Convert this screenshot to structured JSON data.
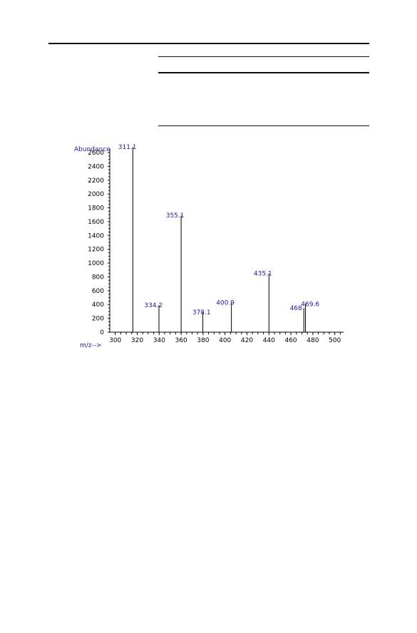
{
  "page": {
    "rules": [
      {
        "name": "top-rule"
      },
      {
        "name": "table-rule-1"
      },
      {
        "name": "table-rule-2"
      },
      {
        "name": "table-rule-3"
      }
    ]
  },
  "chart_data": {
    "type": "bar",
    "title": "",
    "ylabel": "Abundance",
    "xlabel": "m/z-->",
    "xlim": [
      295,
      508
    ],
    "ylim": [
      0,
      2800
    ],
    "x_ticks": [
      300,
      320,
      340,
      360,
      380,
      400,
      420,
      440,
      460,
      480,
      500
    ],
    "y_ticks": [
      0,
      200,
      400,
      600,
      800,
      1000,
      1200,
      1400,
      1600,
      1800,
      2000,
      2200,
      2400,
      2600
    ],
    "grid": false,
    "colors": {
      "peak": "#000000",
      "axis": "#000000",
      "label": "#1a1a9a",
      "tick_text": "#000000"
    },
    "peaks": [
      {
        "mz": 316.0,
        "abundance": 2680,
        "label": "311.1",
        "label_offset_mz": -5.0
      },
      {
        "mz": 339.8,
        "abundance": 390,
        "label": "334.2",
        "label_offset_mz": -5.0
      },
      {
        "mz": 360.0,
        "abundance": 1690,
        "label": "355.1",
        "label_offset_mz": -5.5
      },
      {
        "mz": 379.8,
        "abundance": 290,
        "label": "378.1",
        "label_offset_mz": -1.2
      },
      {
        "mz": 405.8,
        "abundance": 430,
        "label": "400.9",
        "label_offset_mz": -5.5
      },
      {
        "mz": 440.0,
        "abundance": 850,
        "label": "435.1",
        "label_offset_mz": -5.5
      },
      {
        "mz": 471.8,
        "abundance": 350,
        "label": "468",
        "label_offset_mz": -7.2
      },
      {
        "mz": 473.3,
        "abundance": 410,
        "label": "469.6",
        "label_offset_mz": 4.3
      }
    ]
  }
}
